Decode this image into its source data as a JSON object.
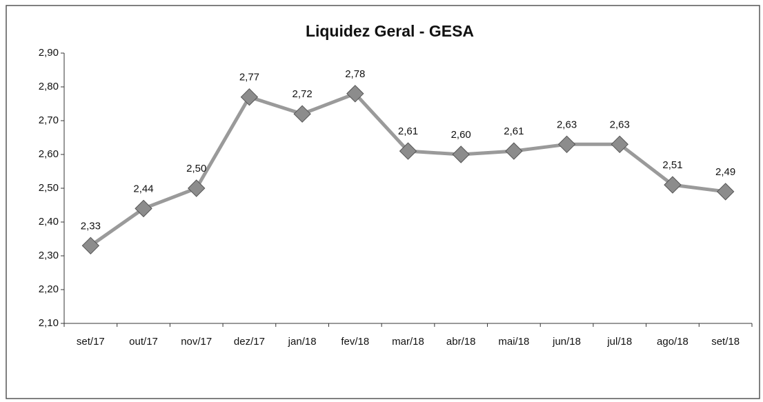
{
  "chart_data": {
    "type": "line",
    "title": "Liquidez Geral  - GESA",
    "categories": [
      "set/17",
      "out/17",
      "nov/17",
      "dez/17",
      "jan/18",
      "fev/18",
      "mar/18",
      "abr/18",
      "mai/18",
      "jun/18",
      "jul/18",
      "ago/18",
      "set/18"
    ],
    "values": [
      2.33,
      2.44,
      2.5,
      2.77,
      2.72,
      2.78,
      2.61,
      2.6,
      2.61,
      2.63,
      2.63,
      2.51,
      2.49
    ],
    "value_labels": [
      "2,33",
      "2,44",
      "2,50",
      "2,77",
      "2,72",
      "2,78",
      "2,61",
      "2,60",
      "2,61",
      "2,63",
      "2,63",
      "2,51",
      "2,49"
    ],
    "color": "#9a9a9a",
    "ylim": [
      2.1,
      2.9
    ],
    "yticks": [
      {
        "value": 2.1,
        "label": "2,10"
      },
      {
        "value": 2.2,
        "label": "2,20"
      },
      {
        "value": 2.3,
        "label": "2,30"
      },
      {
        "value": 2.4,
        "label": "2,40"
      },
      {
        "value": 2.5,
        "label": "2,50"
      },
      {
        "value": 2.6,
        "label": "2,60"
      },
      {
        "value": 2.7,
        "label": "2,70"
      },
      {
        "value": 2.8,
        "label": "2,80"
      },
      {
        "value": 2.9,
        "label": "2,90"
      }
    ],
    "grid": false
  }
}
